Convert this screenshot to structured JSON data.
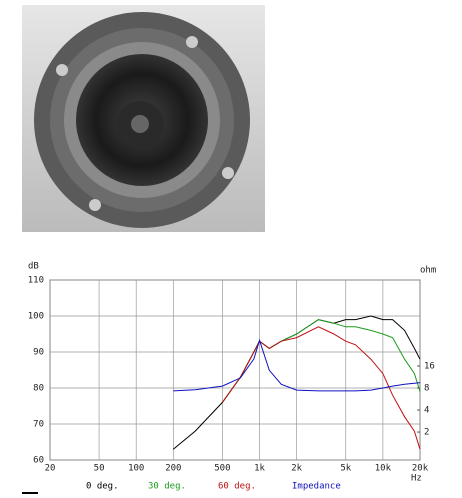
{
  "chart_data": {
    "type": "line",
    "x": [
      200,
      300,
      500,
      700,
      900,
      1000,
      1200,
      1500,
      2000,
      3000,
      4000,
      5000,
      6000,
      8000,
      10000,
      12000,
      15000,
      18000,
      20000
    ],
    "series": [
      {
        "name": "0 deg.",
        "color": "#000000",
        "values": [
          63,
          68,
          76,
          83,
          90,
          93,
          91,
          93,
          95,
          99,
          98,
          99,
          99,
          100,
          99,
          99,
          96,
          91,
          88
        ]
      },
      {
        "name": "30 deg.",
        "color": "#1a9a1a",
        "values": [
          null,
          null,
          76,
          83,
          90,
          93,
          91,
          93,
          95,
          99,
          98,
          97,
          97,
          96,
          95,
          94,
          88,
          84,
          79
        ]
      },
      {
        "name": "60 deg.",
        "color": "#c01010",
        "values": [
          null,
          null,
          76,
          83,
          90,
          93,
          91,
          93,
          94,
          97,
          95,
          93,
          92,
          88,
          84,
          78,
          72,
          68,
          63
        ]
      },
      {
        "name": "Impedance",
        "color": "#1010c0",
        "axis": "y2",
        "values": [
          7.3,
          7.6,
          8.5,
          11,
          20,
          36,
          14,
          9,
          7.5,
          7.3,
          7.3,
          7.3,
          7.3,
          7.5,
          8,
          8.5,
          9,
          9.3,
          9.5
        ]
      }
    ],
    "xlim": [
      20,
      20000
    ],
    "log_x": true,
    "xticks": [
      20,
      50,
      100,
      200,
      500,
      {
        "value": 1000,
        "label": "1k"
      },
      {
        "value": 2000,
        "label": "2k"
      },
      {
        "value": 5000,
        "label": "5k"
      },
      {
        "value": 10000,
        "label": "10k"
      },
      {
        "value": 20000,
        "label": "20k"
      }
    ],
    "ylim": [
      60,
      110
    ],
    "yticks": [
      60,
      70,
      80,
      90,
      100,
      110
    ],
    "y2lim": [
      0.83,
      240
    ],
    "log_y2": true,
    "y2ticks": [
      2,
      4,
      8,
      16
    ],
    "y_label": "dB",
    "y2_label": "ohm",
    "x_label": "Hz",
    "grid": true
  }
}
